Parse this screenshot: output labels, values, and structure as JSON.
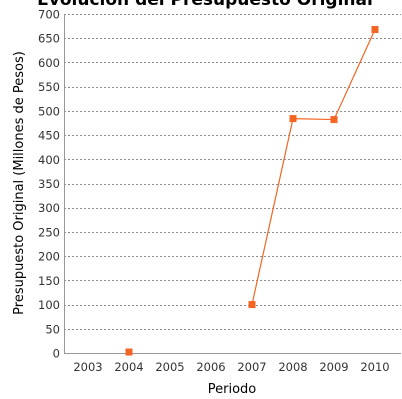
{
  "chart_data": {
    "type": "line",
    "title": "Evolución del Presupuesto Original",
    "xlabel": "Periodo",
    "ylabel": "Presupuesto Original (Millones de Pesos)",
    "categories": [
      "2003",
      "2004",
      "2005",
      "2006",
      "2007",
      "2008",
      "2009",
      "2010"
    ],
    "y_ticks": [
      "0",
      "50",
      "100",
      "150",
      "200",
      "250",
      "300",
      "350",
      "400",
      "450",
      "500",
      "550",
      "600",
      "650",
      "700"
    ],
    "ylim": [
      0,
      700
    ],
    "grid": true,
    "series": [
      {
        "values": [
          null,
          2,
          null,
          null,
          100,
          484,
          482,
          668
        ],
        "color": "#f26522"
      }
    ]
  }
}
